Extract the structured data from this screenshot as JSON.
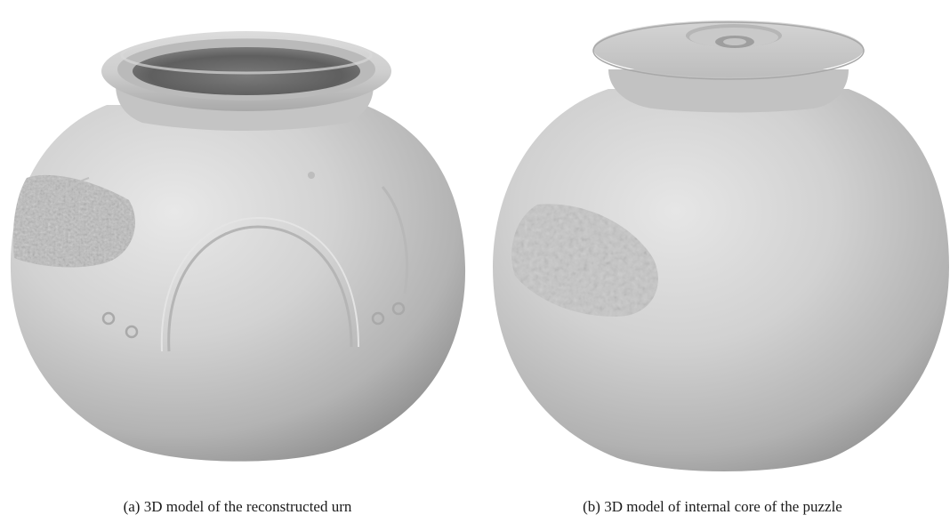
{
  "figure": {
    "panels": [
      {
        "caption": "(a) 3D model of the reconstructed urn",
        "object": "urn",
        "surface_color": "#c9c9c9"
      },
      {
        "caption": "(b) 3D model of internal core of the puzzle",
        "object": "internal-core",
        "surface_color": "#c9c9c9"
      }
    ]
  }
}
